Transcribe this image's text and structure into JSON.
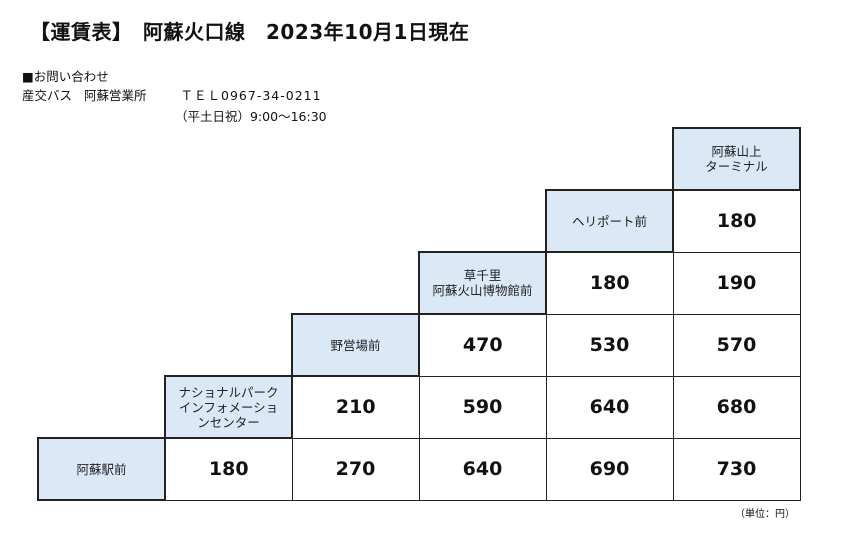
{
  "header": {
    "title": "【運賃表】　阿蘇火口線　2023年10月1日現在"
  },
  "contact": {
    "heading": "■お問い合わせ",
    "company": "産交バス",
    "office": "阿蘇営業所",
    "tel": "ＴＥＬ0967-34-0211",
    "hours": "（平土日祝）9:00〜16:30"
  },
  "stations": [
    "阿蘇駅前",
    "ナショナルパーク\nインフォメーショ\nンセンター",
    "野営場前",
    "草千里\n阿蘇火山博物館前",
    "ヘリポート前",
    "阿蘇山上\nターミナル"
  ],
  "fare_rows": [
    {
      "row": 0,
      "cells": []
    },
    {
      "row": 1,
      "cells": [
        "180"
      ]
    },
    {
      "row": 2,
      "cells": [
        "180",
        "190"
      ]
    },
    {
      "row": 3,
      "cells": [
        "470",
        "530",
        "570"
      ]
    },
    {
      "row": 4,
      "cells": [
        "210",
        "590",
        "640",
        "680"
      ]
    },
    {
      "row": 5,
      "cells": [
        "180",
        "270",
        "640",
        "690",
        "730"
      ]
    }
  ],
  "unit_note": "（単位：円）"
}
